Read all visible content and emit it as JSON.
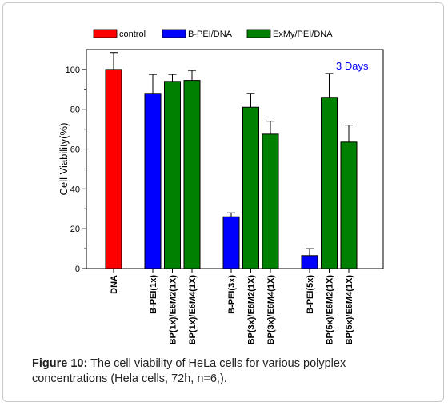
{
  "chart_data": {
    "type": "bar",
    "ylabel": "Cell Viability(%)",
    "ylim": [
      0,
      110
    ],
    "yticks": [
      0,
      20,
      40,
      60,
      80,
      100
    ],
    "annotation": "3 Days",
    "legend": [
      {
        "name": "control",
        "color": "#ff0000"
      },
      {
        "name": "B-PEI/DNA",
        "color": "#0000ff"
      },
      {
        "name": "ExMy/PEI/DNA",
        "color": "#008000"
      }
    ],
    "bars": [
      {
        "category": "DNA",
        "value": 100,
        "error": 8.5,
        "series": "control",
        "pos": 0
      },
      {
        "category": "B-PEI(1x)",
        "value": 88,
        "error": 9.5,
        "series": "B-PEI/DNA",
        "pos": 2
      },
      {
        "category": "BP(1x)/E6M2(1X)",
        "value": 94,
        "error": 3.5,
        "series": "ExMy/PEI/DNA",
        "pos": 3
      },
      {
        "category": "BP(1x)/E6M4(1X)",
        "value": 94.5,
        "error": 5,
        "series": "ExMy/PEI/DNA",
        "pos": 4
      },
      {
        "category": "B-PEI(3x)",
        "value": 26,
        "error": 2,
        "series": "B-PEI/DNA",
        "pos": 6
      },
      {
        "category": "BP(3x)/E6M2(1X)",
        "value": 81,
        "error": 7,
        "series": "ExMy/PEI/DNA",
        "pos": 7
      },
      {
        "category": "BP(3x)/E6M4(1X)",
        "value": 67.5,
        "error": 6.5,
        "series": "ExMy/PEI/DNA",
        "pos": 8
      },
      {
        "category": "B-PEI(5x)",
        "value": 6.5,
        "error": 3.5,
        "series": "B-PEI/DNA",
        "pos": 10
      },
      {
        "category": "BP(5x)/E6M2(1X)",
        "value": 86,
        "error": 12,
        "series": "ExMy/PEI/DNA",
        "pos": 11
      },
      {
        "category": "BP(5x)/E6M4(1X)",
        "value": 63.5,
        "error": 8.5,
        "series": "ExMy/PEI/DNA",
        "pos": 12
      }
    ]
  },
  "caption": {
    "lead": "Figure 10:",
    "text": " The cell viability of HeLa cells for various polyplex concentrations (Hela cells, 72h, n=6,)."
  }
}
